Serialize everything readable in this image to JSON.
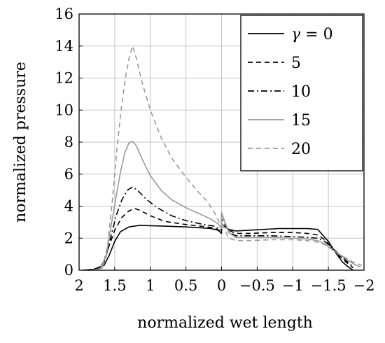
{
  "chart_data": {
    "type": "line",
    "xlabel": "normalized wet length",
    "ylabel": "normalized pressure",
    "xlim": [
      2,
      -2
    ],
    "ylim": [
      0,
      16
    ],
    "x_ticks": [
      2,
      1.5,
      1,
      0.5,
      0,
      -0.5,
      -1,
      -1.5,
      -2
    ],
    "x_tick_labels": [
      "2",
      "1.5",
      "1",
      "0.5",
      "0",
      "−0.5",
      "−1",
      "−1.5",
      "−2"
    ],
    "y_ticks": [
      0,
      2,
      4,
      6,
      8,
      10,
      12,
      14,
      16
    ],
    "y_tick_labels": [
      "0",
      "2",
      "4",
      "6",
      "8",
      "10",
      "12",
      "14",
      "16"
    ],
    "grid": true,
    "legend_position": "top-right",
    "legend_prefix": "γ = ",
    "series": [
      {
        "name": "0",
        "color": "#000000",
        "dash": "",
        "points": [
          [
            1.95,
            0
          ],
          [
            1.8,
            0.05
          ],
          [
            1.65,
            0.3
          ],
          [
            1.58,
            0.9
          ],
          [
            1.5,
            1.8
          ],
          [
            1.42,
            2.4
          ],
          [
            1.3,
            2.7
          ],
          [
            1.15,
            2.8
          ],
          [
            1.0,
            2.78
          ],
          [
            0.8,
            2.75
          ],
          [
            0.5,
            2.7
          ],
          [
            0.3,
            2.65
          ],
          [
            0.15,
            2.6
          ],
          [
            0.05,
            2.5
          ],
          [
            0.0,
            2.3
          ],
          [
            0.0,
            2.9
          ],
          [
            -0.1,
            2.55
          ],
          [
            -0.2,
            2.45
          ],
          [
            -0.4,
            2.5
          ],
          [
            -0.6,
            2.55
          ],
          [
            -0.8,
            2.6
          ],
          [
            -1.0,
            2.6
          ],
          [
            -1.2,
            2.6
          ],
          [
            -1.35,
            2.55
          ],
          [
            -1.4,
            2.3
          ],
          [
            -1.5,
            1.8
          ],
          [
            -1.6,
            1.1
          ],
          [
            -1.7,
            0.5
          ],
          [
            -1.78,
            0.2
          ],
          [
            -1.85,
            0.0
          ]
        ]
      },
      {
        "name": "5",
        "color": "#000000",
        "dash": "7,5",
        "points": [
          [
            1.88,
            0
          ],
          [
            1.75,
            0.05
          ],
          [
            1.65,
            0.5
          ],
          [
            1.58,
            1.5
          ],
          [
            1.5,
            2.5
          ],
          [
            1.4,
            3.3
          ],
          [
            1.3,
            3.7
          ],
          [
            1.22,
            3.85
          ],
          [
            1.15,
            3.75
          ],
          [
            1.0,
            3.4
          ],
          [
            0.8,
            3.05
          ],
          [
            0.5,
            2.85
          ],
          [
            0.3,
            2.75
          ],
          [
            0.1,
            2.65
          ],
          [
            0.0,
            2.4
          ],
          [
            0.0,
            3.2
          ],
          [
            -0.1,
            2.5
          ],
          [
            -0.2,
            2.3
          ],
          [
            -0.4,
            2.3
          ],
          [
            -0.7,
            2.35
          ],
          [
            -1.0,
            2.35
          ],
          [
            -1.2,
            2.3
          ],
          [
            -1.35,
            2.2
          ],
          [
            -1.45,
            1.9
          ],
          [
            -1.55,
            1.4
          ],
          [
            -1.65,
            0.9
          ],
          [
            -1.75,
            0.5
          ],
          [
            -1.85,
            0.15
          ]
        ]
      },
      {
        "name": "10",
        "color": "#000000",
        "dash": "9,4,2,4",
        "points": [
          [
            1.85,
            0
          ],
          [
            1.72,
            0.1
          ],
          [
            1.63,
            0.7
          ],
          [
            1.56,
            2.0
          ],
          [
            1.48,
            3.4
          ],
          [
            1.4,
            4.4
          ],
          [
            1.32,
            5.0
          ],
          [
            1.25,
            5.2
          ],
          [
            1.18,
            5.0
          ],
          [
            1.05,
            4.4
          ],
          [
            0.9,
            3.9
          ],
          [
            0.7,
            3.4
          ],
          [
            0.5,
            3.1
          ],
          [
            0.3,
            2.9
          ],
          [
            0.1,
            2.75
          ],
          [
            0.0,
            2.5
          ],
          [
            0.0,
            3.5
          ],
          [
            -0.1,
            2.4
          ],
          [
            -0.2,
            2.15
          ],
          [
            -0.4,
            2.15
          ],
          [
            -0.7,
            2.15
          ],
          [
            -1.0,
            2.1
          ],
          [
            -1.2,
            2.05
          ],
          [
            -1.35,
            2.0
          ],
          [
            -1.45,
            1.8
          ],
          [
            -1.55,
            1.4
          ],
          [
            -1.65,
            1.0
          ],
          [
            -1.75,
            0.6
          ],
          [
            -1.85,
            0.2
          ]
        ]
      },
      {
        "name": "15",
        "color": "#9a9a9a",
        "dash": "",
        "points": [
          [
            1.82,
            0
          ],
          [
            1.7,
            0.1
          ],
          [
            1.62,
            0.9
          ],
          [
            1.55,
            2.8
          ],
          [
            1.48,
            4.6
          ],
          [
            1.42,
            6.1
          ],
          [
            1.36,
            7.3
          ],
          [
            1.3,
            7.95
          ],
          [
            1.25,
            8.05
          ],
          [
            1.2,
            7.8
          ],
          [
            1.1,
            6.8
          ],
          [
            1.0,
            5.9
          ],
          [
            0.85,
            5.0
          ],
          [
            0.7,
            4.4
          ],
          [
            0.5,
            3.9
          ],
          [
            0.3,
            3.5
          ],
          [
            0.15,
            3.2
          ],
          [
            0.05,
            2.9
          ],
          [
            0.0,
            2.6
          ],
          [
            0.0,
            3.6
          ],
          [
            -0.1,
            2.35
          ],
          [
            -0.2,
            2.05
          ],
          [
            -0.4,
            2.05
          ],
          [
            -0.7,
            2.05
          ],
          [
            -1.0,
            2.0
          ],
          [
            -1.2,
            1.95
          ],
          [
            -1.35,
            1.85
          ],
          [
            -1.45,
            1.65
          ],
          [
            -1.55,
            1.3
          ],
          [
            -1.65,
            1.0
          ],
          [
            -1.75,
            0.7
          ],
          [
            -1.85,
            0.4
          ],
          [
            -1.95,
            0.2
          ]
        ]
      },
      {
        "name": "20",
        "color": "#9a9a9a",
        "dash": "7,5",
        "points": [
          [
            1.8,
            0
          ],
          [
            1.68,
            0.1
          ],
          [
            1.6,
            1.5
          ],
          [
            1.53,
            4.5
          ],
          [
            1.47,
            7.5
          ],
          [
            1.41,
            10.0
          ],
          [
            1.35,
            12.0
          ],
          [
            1.3,
            13.2
          ],
          [
            1.25,
            14.0
          ],
          [
            1.2,
            13.3
          ],
          [
            1.12,
            11.8
          ],
          [
            1.0,
            10.0
          ],
          [
            0.85,
            8.3
          ],
          [
            0.7,
            7.0
          ],
          [
            0.5,
            5.8
          ],
          [
            0.35,
            5.0
          ],
          [
            0.2,
            4.3
          ],
          [
            0.1,
            3.6
          ],
          [
            0.0,
            2.7
          ],
          [
            0.0,
            3.0
          ],
          [
            -0.1,
            2.0
          ],
          [
            -0.2,
            1.85
          ],
          [
            -0.4,
            1.85
          ],
          [
            -0.7,
            1.9
          ],
          [
            -1.0,
            1.9
          ],
          [
            -1.2,
            1.85
          ],
          [
            -1.35,
            1.75
          ],
          [
            -1.45,
            1.6
          ],
          [
            -1.55,
            1.3
          ],
          [
            -1.65,
            1.0
          ],
          [
            -1.75,
            0.75
          ],
          [
            -1.85,
            0.5
          ],
          [
            -1.97,
            0.3
          ]
        ]
      }
    ]
  }
}
